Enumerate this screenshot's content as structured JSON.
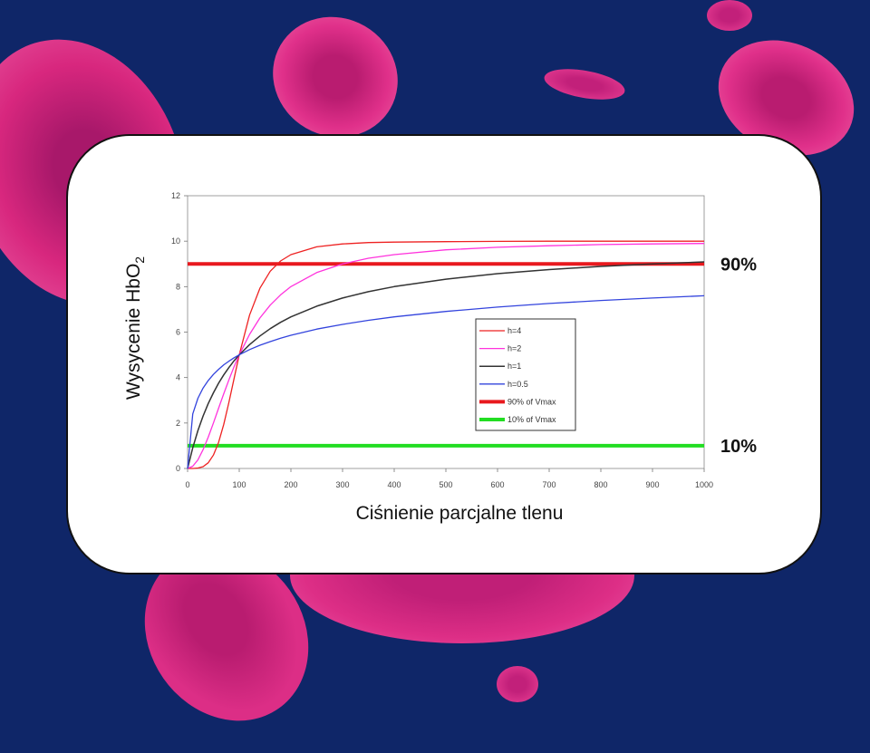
{
  "chart_data": {
    "type": "line",
    "xlabel": "Ciśnienie parcjalne tlenu",
    "ylabel_main": "Wysycenie HbO",
    "ylabel_sub": "2",
    "xlim": [
      0,
      1000
    ],
    "ylim": [
      0,
      12
    ],
    "xticks": [
      0,
      100,
      200,
      300,
      400,
      500,
      600,
      700,
      800,
      900,
      1000
    ],
    "yticks": [
      0,
      2,
      4,
      6,
      8,
      10,
      12
    ],
    "grid": false,
    "legend_position": "center-right",
    "x": [
      0,
      10,
      20,
      30,
      40,
      50,
      60,
      70,
      80,
      90,
      100,
      120,
      140,
      160,
      180,
      200,
      250,
      300,
      350,
      400,
      500,
      600,
      700,
      800,
      900,
      1000
    ],
    "series": [
      {
        "name": "h=4",
        "color": "#ee2222",
        "width": 1.3,
        "values": [
          0,
          0,
          0.02,
          0.08,
          0.25,
          0.59,
          1.15,
          1.94,
          2.91,
          3.96,
          5.0,
          6.75,
          7.93,
          8.68,
          9.13,
          9.41,
          9.75,
          9.88,
          9.94,
          9.96,
          9.98,
          9.99,
          10.0,
          10.0,
          10.0,
          10.0
        ]
      },
      {
        "name": "h=2",
        "color": "#ff33dd",
        "width": 1.3,
        "values": [
          0,
          0.1,
          0.38,
          0.83,
          1.38,
          2.0,
          2.65,
          3.29,
          3.9,
          4.48,
          5.0,
          5.9,
          6.62,
          7.19,
          7.64,
          8.0,
          8.62,
          9.0,
          9.25,
          9.41,
          9.62,
          9.73,
          9.8,
          9.85,
          9.88,
          9.9
        ]
      },
      {
        "name": "h=1",
        "color": "#333333",
        "width": 1.5,
        "values": [
          0,
          0.91,
          1.67,
          2.31,
          2.86,
          3.33,
          3.75,
          4.12,
          4.44,
          4.74,
          5.0,
          5.45,
          5.83,
          6.15,
          6.43,
          6.67,
          7.14,
          7.5,
          7.78,
          8.0,
          8.33,
          8.57,
          8.75,
          8.89,
          9.0,
          9.09
        ]
      },
      {
        "name": "h=0.5",
        "color": "#3344dd",
        "width": 1.3,
        "values": [
          0,
          2.4,
          3.09,
          3.54,
          3.87,
          4.14,
          4.36,
          4.56,
          4.72,
          4.87,
          5.0,
          5.23,
          5.42,
          5.58,
          5.73,
          5.86,
          6.13,
          6.34,
          6.52,
          6.67,
          6.91,
          7.1,
          7.26,
          7.39,
          7.5,
          7.6
        ]
      },
      {
        "name": "90% of Vmax",
        "color": "#e8191e",
        "width": 4,
        "values": [
          9,
          9,
          9,
          9,
          9,
          9,
          9,
          9,
          9,
          9,
          9,
          9,
          9,
          9,
          9,
          9,
          9,
          9,
          9,
          9,
          9,
          9,
          9,
          9,
          9,
          9
        ]
      },
      {
        "name": "10% of Vmax",
        "color": "#22dd22",
        "width": 4,
        "values": [
          1,
          1,
          1,
          1,
          1,
          1,
          1,
          1,
          1,
          1,
          1,
          1,
          1,
          1,
          1,
          1,
          1,
          1,
          1,
          1,
          1,
          1,
          1,
          1,
          1,
          1
        ]
      }
    ],
    "annotations": [
      {
        "text": "90%",
        "y": 9
      },
      {
        "text": "10%",
        "y": 1
      }
    ]
  },
  "colors": {
    "background": "#0f2668",
    "blood_cell": "#d8277e",
    "card": "#ffffff"
  }
}
